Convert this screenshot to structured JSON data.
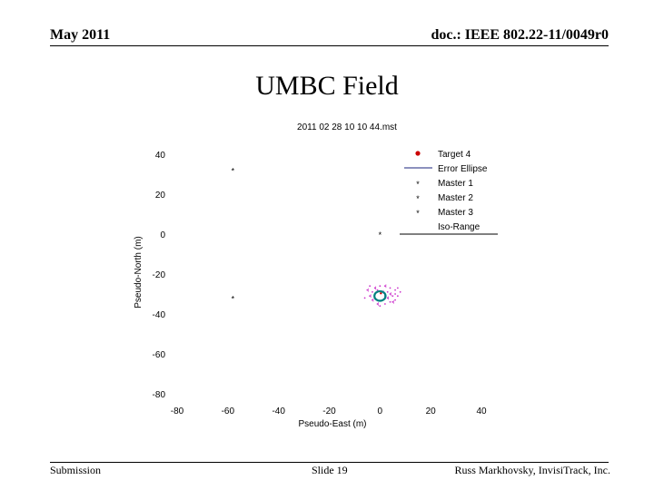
{
  "header": {
    "left": "May 2011",
    "right": "doc.: IEEE 802.22-11/0049r0"
  },
  "slide_title": "UMBC Field",
  "footer": {
    "left": "Submission",
    "center": "Slide 19",
    "right": "Russ Markhovsky, InvisiTrack, Inc."
  },
  "chart_data": {
    "type": "scatter",
    "title": "2011 02 28 10 10 44.mst",
    "xlabel": "Pseudo-East (m)",
    "ylabel": "Pseudo-North (m)",
    "xlim": [
      -80,
      40
    ],
    "ylim": [
      -80,
      40
    ],
    "xticks": [
      -80,
      -60,
      -40,
      -20,
      0,
      20,
      40
    ],
    "yticks": [
      40,
      20,
      0,
      -20,
      -40,
      -60,
      -80
    ],
    "grid": false,
    "legend_position": "top-right",
    "legend": [
      "Target 4",
      "Error Ellipse",
      "Master 1",
      "Master 2",
      "Master 3",
      "Iso-Range"
    ],
    "series": [
      {
        "name": "Target 4",
        "marker": "dot",
        "color": "#cc0000",
        "points": [
          [
            0,
            -31
          ]
        ]
      },
      {
        "name": "Error Ellipse",
        "marker": "ellipse",
        "color": "#008080",
        "center": [
          0,
          -31
        ],
        "rx": 2.2,
        "ry": 2.4
      },
      {
        "name": "Master 1",
        "marker": "star",
        "color": "#000000",
        "points": [
          [
            -58,
            32
          ]
        ]
      },
      {
        "name": "Master 2",
        "marker": "star",
        "color": "#000000",
        "points": [
          [
            0,
            0
          ]
        ]
      },
      {
        "name": "Master 3",
        "marker": "star",
        "color": "#000000",
        "points": [
          [
            -58,
            -32
          ]
        ]
      },
      {
        "name": "Iso-Range",
        "marker": "scatter",
        "color": "#cc33cc",
        "points": [
          [
            -5,
            -28
          ],
          [
            -4,
            -31
          ],
          [
            -3,
            -33
          ],
          [
            -2,
            -27
          ],
          [
            -1,
            -35
          ],
          [
            1,
            -29
          ],
          [
            2,
            -26
          ],
          [
            3,
            -32
          ],
          [
            4,
            -30
          ],
          [
            5,
            -34
          ],
          [
            6,
            -28
          ],
          [
            7,
            -31
          ],
          [
            8,
            -29
          ],
          [
            -6,
            -32
          ],
          [
            -2,
            -30
          ],
          [
            0,
            -26
          ],
          [
            2,
            -35
          ],
          [
            4,
            -27
          ],
          [
            1,
            -33
          ],
          [
            3,
            -29
          ],
          [
            -3,
            -29
          ],
          [
            5,
            -31
          ],
          [
            6,
            -33
          ],
          [
            -4,
            -26
          ],
          [
            0,
            -36
          ],
          [
            7,
            -27
          ],
          [
            -1,
            -28
          ],
          [
            2,
            -31
          ],
          [
            4,
            -34
          ],
          [
            6,
            -30
          ]
        ]
      }
    ]
  }
}
